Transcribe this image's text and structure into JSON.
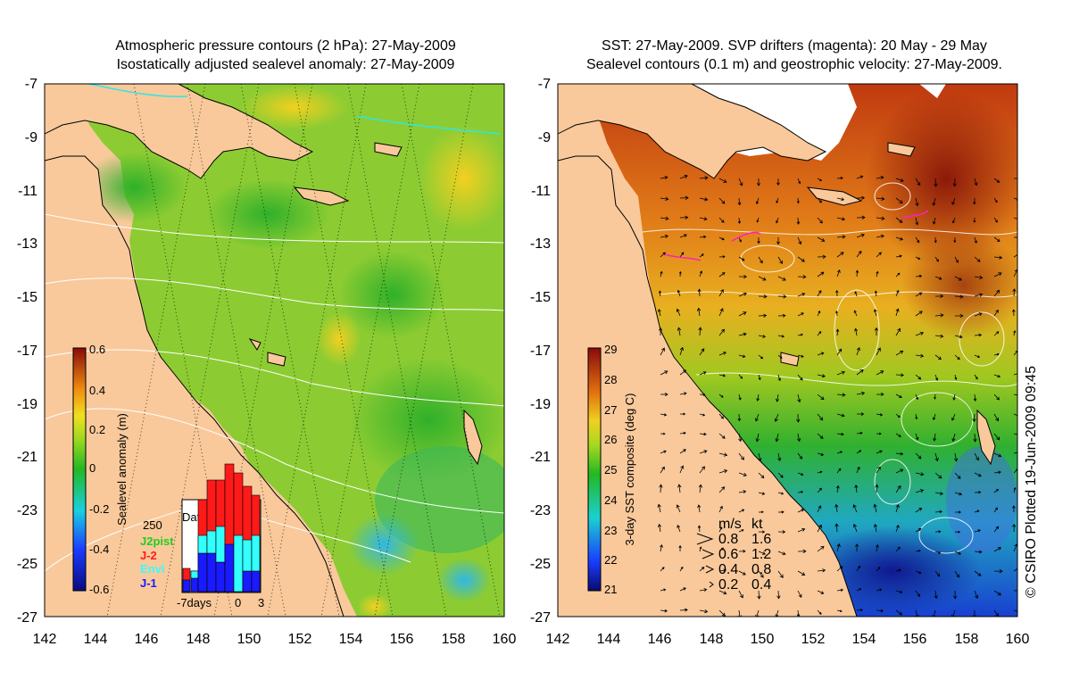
{
  "left_panel": {
    "title_line1": "Atmospheric pressure contours (2 hPa): 27-May-2009",
    "title_line2": "Isostatically adjusted sealevel anomaly: 27-May-2009",
    "y_ticks": [
      "-7",
      "-9",
      "-11",
      "-13",
      "-15",
      "-17",
      "-19",
      "-21",
      "-23",
      "-25",
      "-27"
    ],
    "x_ticks": [
      "142",
      "144",
      "146",
      "148",
      "150",
      "152",
      "154",
      "156",
      "158",
      "160"
    ],
    "colorbar": {
      "label": "Sealevel anomaly (m)",
      "ticks": [
        "0.6",
        "0.4",
        "0.2",
        "0",
        "-0.2",
        "-0.4",
        "-0.6"
      ]
    },
    "data_count": {
      "title": "Data count",
      "max": "250",
      "x_labels": [
        "-7days",
        "0",
        "3"
      ],
      "legend": [
        {
          "name": "J2pist",
          "color": "#22cc22"
        },
        {
          "name": "J-2",
          "color": "#ff1a1a"
        },
        {
          "name": "Envi",
          "color": "#33ffff"
        },
        {
          "name": "J-1",
          "color": "#1a1aff"
        }
      ]
    }
  },
  "right_panel": {
    "title_line1": "SST: 27-May-2009. SVP drifters (magenta): 20 May - 29 May",
    "title_line2": "Sealevel contours (0.1 m) and geostrophic velocity: 27-May-2009.",
    "y_ticks": [
      "-7",
      "-9",
      "-11",
      "-13",
      "-15",
      "-17",
      "-19",
      "-21",
      "-23",
      "-25",
      "-27"
    ],
    "x_ticks": [
      "142",
      "144",
      "146",
      "148",
      "150",
      "152",
      "154",
      "156",
      "158",
      "160"
    ],
    "colorbar": {
      "label": "3-day SST composite (deg C)",
      "ticks": [
        "29",
        "28",
        "27",
        "26",
        "25",
        "24",
        "23",
        "22",
        "21"
      ]
    },
    "velocity_legend": {
      "header_ms": "m/s",
      "header_kt": "kt",
      "rows": [
        {
          "ms": "0.8",
          "kt": "1.6"
        },
        {
          "ms": "0.6",
          "kt": "1.2"
        },
        {
          "ms": "0.4",
          "kt": "0.8"
        },
        {
          "ms": "0.2",
          "kt": "0.4"
        }
      ]
    }
  },
  "credit": "© CSIRO Plotted 19-Jun-2009 09:45",
  "colors": {
    "land": "#f9c99b",
    "frame": "#000000",
    "contour": "#ffffff"
  }
}
